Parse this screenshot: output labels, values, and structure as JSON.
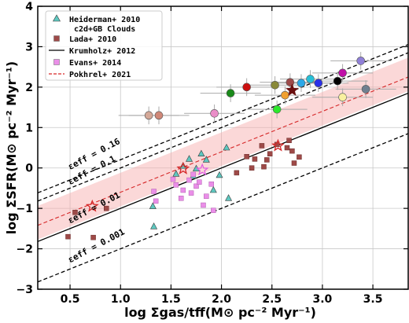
{
  "chart_data": {
    "type": "scatter",
    "xlabel": "log Σgas/tff(M⊙ pc⁻² Myr⁻¹)",
    "ylabel": "log ΣSFR(M⊙ pc⁻² Myr⁻¹)",
    "xlim": [
      0.18,
      3.85
    ],
    "ylim": [
      -3,
      4
    ],
    "xticks": [
      0.5,
      1.0,
      1.5,
      2.0,
      2.5,
      3.0,
      3.5
    ],
    "xtick_labels": [
      "0.5",
      "1.0",
      "1.5",
      "2.0",
      "2.5",
      "3.0",
      "3.5"
    ],
    "yticks": [
      -3,
      -2,
      -1,
      0,
      1,
      2,
      3,
      4
    ],
    "ytick_labels": [
      "−3",
      "−2",
      "−1",
      "0",
      "1",
      "2",
      "3",
      "4"
    ],
    "grid": true,
    "legend_position": "top-left",
    "legend": [
      {
        "label": "Heiderman+ 2010",
        "label2": "c2d+GB Clouds",
        "marker": "triangle",
        "color": "#5ec8c0"
      },
      {
        "label": "Lada+ 2010",
        "marker": "square",
        "color": "#9e4a48"
      },
      {
        "label": "Krumholz+ 2012",
        "marker": "line-solid",
        "color": "#000000"
      },
      {
        "label": "Evans+ 2014",
        "marker": "square",
        "color": "#ea8ee8"
      },
      {
        "label": "Pokhrel+ 2021",
        "marker": "line-dashed",
        "color": "#d62728"
      }
    ],
    "lines": [
      {
        "label": "εeff = 0.16",
        "intercept": -0.796,
        "style": "dashed",
        "color": "#000000"
      },
      {
        "label": "εeff = 0.1",
        "intercept": -1.0,
        "style": "dashed",
        "color": "#000000"
      },
      {
        "label": "εeff = 0.01",
        "intercept": -2.0,
        "style": "solid",
        "color": "#000000"
      },
      {
        "label": "εeff = 0.001",
        "intercept": -3.0,
        "style": "dashed",
        "color": "#000000"
      },
      {
        "label": "Pokhrel+ 2021",
        "intercept": -1.6,
        "style": "dashed",
        "color": "#d62728",
        "band": [
          -1.95,
          -1.12
        ]
      }
    ],
    "series": [
      {
        "name": "Heiderman+ 2010",
        "marker": "triangle",
        "color": "#5ec8c0",
        "points": [
          [
            1.33,
            -1.45
          ],
          [
            1.32,
            -0.95
          ],
          [
            1.55,
            -0.15
          ],
          [
            1.68,
            0.22
          ],
          [
            1.8,
            0.35
          ],
          [
            1.92,
            -0.55
          ],
          [
            1.98,
            -0.18
          ],
          [
            2.05,
            0.5
          ],
          [
            1.75,
            -0.02
          ],
          [
            1.62,
            0.05
          ],
          [
            2.07,
            -0.75
          ],
          [
            1.85,
            0.2
          ],
          [
            1.72,
            -0.2
          ]
        ]
      },
      {
        "name": "Lada+ 2010",
        "marker": "square",
        "color": "#9e4a48",
        "points": [
          [
            0.48,
            -1.7
          ],
          [
            0.55,
            -1.1
          ],
          [
            0.73,
            -1.72
          ],
          [
            0.86,
            -1.0
          ],
          [
            2.15,
            -0.12
          ],
          [
            2.25,
            0.28
          ],
          [
            2.33,
            0.22
          ],
          [
            2.4,
            0.55
          ],
          [
            2.42,
            0.03
          ],
          [
            2.48,
            0.35
          ],
          [
            2.55,
            0.58
          ],
          [
            2.65,
            0.5
          ],
          [
            2.67,
            0.68
          ],
          [
            2.72,
            0.12
          ],
          [
            2.77,
            0.27
          ],
          [
            2.7,
            0.42
          ],
          [
            2.45,
            0.2
          ],
          [
            2.3,
            0.0
          ]
        ]
      },
      {
        "name": "Evans+ 2014",
        "marker": "square",
        "color": "#ea8ee8",
        "points": [
          [
            1.33,
            -0.58
          ],
          [
            1.35,
            -0.82
          ],
          [
            1.52,
            -0.28
          ],
          [
            1.55,
            -0.42
          ],
          [
            1.62,
            -0.55
          ],
          [
            1.68,
            -0.3
          ],
          [
            1.72,
            -0.16
          ],
          [
            1.75,
            -0.45
          ],
          [
            1.82,
            -0.92
          ],
          [
            1.85,
            -0.7
          ],
          [
            1.92,
            -1.05
          ],
          [
            1.6,
            -0.75
          ],
          [
            1.9,
            -0.4
          ],
          [
            1.78,
            -0.35
          ],
          [
            1.7,
            -0.62
          ]
        ]
      }
    ],
    "circles": [
      {
        "x": 1.28,
        "y": 1.3,
        "color": "#d4a898",
        "xerr": 0.3,
        "yerr": 0.22
      },
      {
        "x": 1.38,
        "y": 1.3,
        "color": "#d08878",
        "xerr": 0.3,
        "yerr": 0.22
      },
      {
        "x": 1.93,
        "y": 1.35,
        "color": "#ea8ec8",
        "xerr": 0.3,
        "yerr": 0.22
      },
      {
        "x": 2.09,
        "y": 1.85,
        "color": "#1a8a1a",
        "xerr": 0.3,
        "yerr": 0.22
      },
      {
        "x": 2.25,
        "y": 2.0,
        "color": "#cc1010",
        "xerr": 0.3,
        "yerr": 0.22
      },
      {
        "x": 2.53,
        "y": 2.05,
        "color": "#8a8a3a",
        "xerr": 0.3,
        "yerr": 0.22
      },
      {
        "x": 2.55,
        "y": 1.45,
        "color": "#2ce82c",
        "xerr": 0.3,
        "yerr": 0.22
      },
      {
        "x": 2.63,
        "y": 1.8,
        "color": "#f0a030",
        "xerr": 0.3,
        "yerr": 0.22
      },
      {
        "x": 2.68,
        "y": 2.12,
        "color": "#9e4a4a",
        "xerr": 0.3,
        "yerr": 0.22
      },
      {
        "x": 2.79,
        "y": 2.1,
        "color": "#2ca8e8",
        "xerr": 0.3,
        "yerr": 0.22
      },
      {
        "x": 2.88,
        "y": 2.2,
        "color": "#28c0d8",
        "xerr": 0.3,
        "yerr": 0.22
      },
      {
        "x": 2.96,
        "y": 2.1,
        "color": "#2a30e8",
        "xerr": 0.3,
        "yerr": 0.22
      },
      {
        "x": 3.15,
        "y": 2.15,
        "color": "#000000",
        "xerr": 0.3,
        "yerr": 0.22
      },
      {
        "x": 3.2,
        "y": 2.35,
        "color": "#c010a8",
        "xerr": 0.3,
        "yerr": 0.22
      },
      {
        "x": 3.2,
        "y": 1.75,
        "color": "#f8f0a0",
        "xerr": 0.3,
        "yerr": 0.22
      },
      {
        "x": 3.38,
        "y": 2.65,
        "color": "#9080d8",
        "xerr": 0.3,
        "yerr": 0.22
      },
      {
        "x": 3.43,
        "y": 1.95,
        "color": "#708090",
        "xerr": 0.3,
        "yerr": 0.22
      }
    ],
    "stars": [
      {
        "x": 2.7,
        "y": 1.92,
        "fill": "#6a1010",
        "stroke": "#6a1010"
      },
      {
        "x": 2.56,
        "y": 0.55,
        "fill": "none",
        "stroke": "#d62728"
      },
      {
        "x": 1.62,
        "y": -0.02,
        "fill": "none",
        "stroke": "#d62728"
      },
      {
        "x": 0.72,
        "y": -0.95,
        "fill": "none",
        "stroke": "#d62728"
      },
      {
        "x": 1.81,
        "y": -0.05,
        "fill": "none",
        "stroke": "#e060e0"
      }
    ]
  }
}
